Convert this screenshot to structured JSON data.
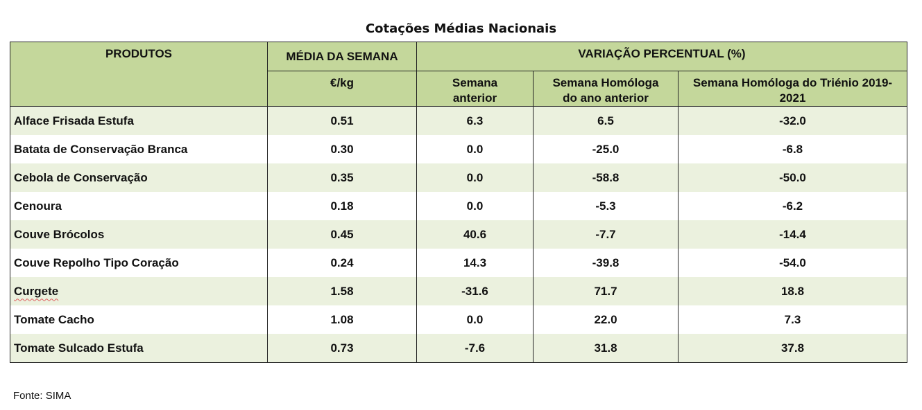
{
  "title": "Cotações Médias Nacionais",
  "table": {
    "header": {
      "produtos": "PRODUTOS",
      "media": "MÉDIA DA SEMANA",
      "unit": "€/kg",
      "variacao": "VARIAÇÃO PERCENTUAL (%)",
      "columns": [
        "Semana anterior",
        "Semana Homóloga do ano anterior",
        "Semana Homóloga do Triénio 2019-2021"
      ]
    },
    "rows": [
      [
        "Alface Frisada Estufa",
        "0.51",
        "6.3",
        "6.5",
        "-32.0"
      ],
      [
        "Batata de Conservação Branca",
        "0.30",
        "0.0",
        "-25.0",
        "-6.8"
      ],
      [
        "Cebola de Conservação",
        "0.35",
        "0.0",
        "-58.8",
        "-50.0"
      ],
      [
        "Cenoura",
        "0.18",
        "0.0",
        "-5.3",
        "-6.2"
      ],
      [
        "Couve Brócolos",
        "0.45",
        "40.6",
        "-7.7",
        "-14.4"
      ],
      [
        "Couve Repolho Tipo Coração",
        "0.24",
        "14.3",
        "-39.8",
        "-54.0"
      ],
      [
        "Curgete",
        "1.58",
        "-31.6",
        "71.7",
        "18.8"
      ],
      [
        "Tomate Cacho",
        "1.08",
        "0.0",
        "22.0",
        "7.3"
      ],
      [
        "Tomate Sulcado Estufa",
        "0.73",
        "-7.6",
        "31.8",
        "37.8"
      ]
    ]
  },
  "source": "Fonte: SIMA"
}
